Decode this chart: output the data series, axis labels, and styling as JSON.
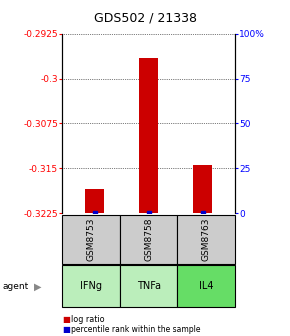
{
  "title": "GDS502 / 21338",
  "samples": [
    "GSM8753",
    "GSM8758",
    "GSM8763"
  ],
  "agents": [
    "IFNg",
    "TNFa",
    "IL4"
  ],
  "log_ratios": [
    -0.3185,
    -0.2965,
    -0.3145
  ],
  "percentile_ranks": [
    1.5,
    1.5,
    1.5
  ],
  "ylim_left": [
    -0.3225,
    -0.2925
  ],
  "ylim_right": [
    0,
    100
  ],
  "yticks_left": [
    -0.3225,
    -0.315,
    -0.3075,
    -0.3,
    -0.2925
  ],
  "yticks_right": [
    0,
    25,
    50,
    75,
    100
  ],
  "ytick_labels_left": [
    "-0.3225",
    "-0.315",
    "-0.3075",
    "-0.3",
    "-0.2925"
  ],
  "ytick_labels_right": [
    "0",
    "25",
    "50",
    "75",
    "100%"
  ],
  "bar_color": "#cc0000",
  "percentile_color": "#0000cc",
  "sample_bg_color": "#cccccc",
  "agent_bg_color_light": "#bbeebb",
  "agent_bg_color_dark": "#66dd66",
  "bar_bottom": -0.3225,
  "bar_width": 0.35
}
